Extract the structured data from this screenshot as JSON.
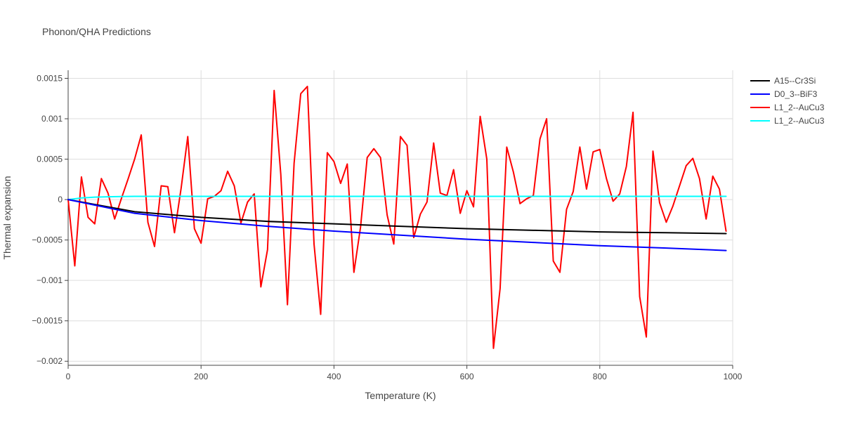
{
  "chart_data": {
    "type": "line",
    "title": "Phonon/QHA Predictions",
    "xlabel": "Temperature (K)",
    "ylabel": "Thermal expansion",
    "xlim": [
      0,
      1000
    ],
    "ylim": [
      -0.00205,
      0.0016
    ],
    "x_ticks": [
      0,
      200,
      400,
      600,
      800,
      1000
    ],
    "x_tick_labels": [
      "0",
      "200",
      "400",
      "600",
      "800",
      "1000"
    ],
    "y_ticks": [
      0.0015,
      0.001,
      0.0005,
      0,
      -0.0005,
      -0.001,
      -0.0015,
      -0.002
    ],
    "y_tick_labels": [
      "0.0015",
      "0.001",
      "0.0005",
      "0",
      "−0.0005",
      "−0.001",
      "−0.0015",
      "−0.002"
    ],
    "grid": true,
    "legend_position": "top-right",
    "series": [
      {
        "name": "A15--Cr3Si",
        "color": "#000000",
        "x": [
          0,
          100,
          200,
          300,
          400,
          500,
          600,
          700,
          800,
          900,
          990
        ],
        "y": [
          0,
          -0.00015,
          -0.00022,
          -0.00027,
          -0.0003,
          -0.00033,
          -0.00036,
          -0.00038,
          -0.0004,
          -0.00041,
          -0.00042
        ]
      },
      {
        "name": "D0_3--BiF3",
        "color": "#0000ff",
        "x": [
          0,
          100,
          200,
          300,
          400,
          500,
          600,
          700,
          800,
          900,
          990
        ],
        "y": [
          0,
          -0.00017,
          -0.00026,
          -0.00033,
          -0.00039,
          -0.00044,
          -0.00049,
          -0.00053,
          -0.00057,
          -0.0006,
          -0.00063
        ]
      },
      {
        "name": "L1_2--AuCu3",
        "color": "#ff0000",
        "x": [
          0,
          10,
          20,
          30,
          40,
          50,
          60,
          70,
          80,
          90,
          100,
          110,
          120,
          130,
          140,
          150,
          160,
          170,
          180,
          190,
          200,
          210,
          220,
          230,
          240,
          250,
          260,
          270,
          280,
          290,
          300,
          310,
          320,
          330,
          340,
          350,
          360,
          370,
          380,
          390,
          400,
          410,
          420,
          430,
          440,
          450,
          460,
          470,
          480,
          490,
          500,
          510,
          520,
          530,
          540,
          550,
          560,
          570,
          580,
          590,
          600,
          610,
          620,
          630,
          640,
          650,
          660,
          670,
          680,
          690,
          700,
          710,
          720,
          730,
          740,
          750,
          760,
          770,
          780,
          790,
          800,
          810,
          820,
          830,
          840,
          850,
          860,
          870,
          880,
          890,
          900,
          910,
          920,
          930,
          940,
          950,
          960,
          970,
          980,
          990
        ],
        "y": [
          0,
          -0.00082,
          0.00028,
          -0.00022,
          -0.0003,
          0.00026,
          8e-05,
          -0.00024,
          1e-05,
          0.00025,
          0.0005,
          0.0008,
          -0.00028,
          -0.00058,
          0.00017,
          0.00016,
          -0.00041,
          0.00014,
          0.00078,
          -0.00036,
          -0.00054,
          1e-05,
          4e-05,
          0.00011,
          0.00035,
          0.00017,
          -0.00029,
          -3e-05,
          7e-05,
          -0.00108,
          -0.00062,
          0.00135,
          0.00031,
          -0.0013,
          0.00045,
          0.00131,
          0.0014,
          -0.00055,
          -0.00142,
          0.00058,
          0.00047,
          0.0002,
          0.00044,
          -0.0009,
          -0.00034,
          0.00052,
          0.00063,
          0.00052,
          -0.00019,
          -0.00055,
          0.00078,
          0.00067,
          -0.00047,
          -0.00018,
          -3e-05,
          0.0007,
          8e-05,
          5e-05,
          0.00037,
          -0.00017,
          0.00011,
          -9e-05,
          0.00103,
          0.0005,
          -0.00184,
          -0.0011,
          0.00065,
          0.00034,
          -5e-05,
          1e-05,
          5e-05,
          0.00075,
          0.001,
          -0.00076,
          -0.0009,
          -0.00012,
          0.0001,
          0.00065,
          0.00013,
          0.00059,
          0.00062,
          0.00026,
          -2e-05,
          7e-05,
          0.00041,
          0.00108,
          -0.0012,
          -0.0017,
          0.0006,
          -4e-05,
          -0.00028,
          -8e-05,
          0.00017,
          0.00042,
          0.00051,
          0.00026,
          -0.00024,
          0.00029,
          0.00013,
          -0.00039
        ]
      },
      {
        "name": "L1_2--AuCu3",
        "color": "#00ffff",
        "x": [
          0,
          20,
          40,
          60,
          80,
          100,
          200,
          300,
          400,
          500,
          600,
          700,
          800,
          900,
          990
        ],
        "y": [
          0,
          2e-05,
          3e-05,
          3.5e-05,
          3.8e-05,
          4e-05,
          4e-05,
          4e-05,
          4e-05,
          4e-05,
          4e-05,
          4e-05,
          4e-05,
          4e-05,
          4e-05
        ]
      }
    ]
  }
}
